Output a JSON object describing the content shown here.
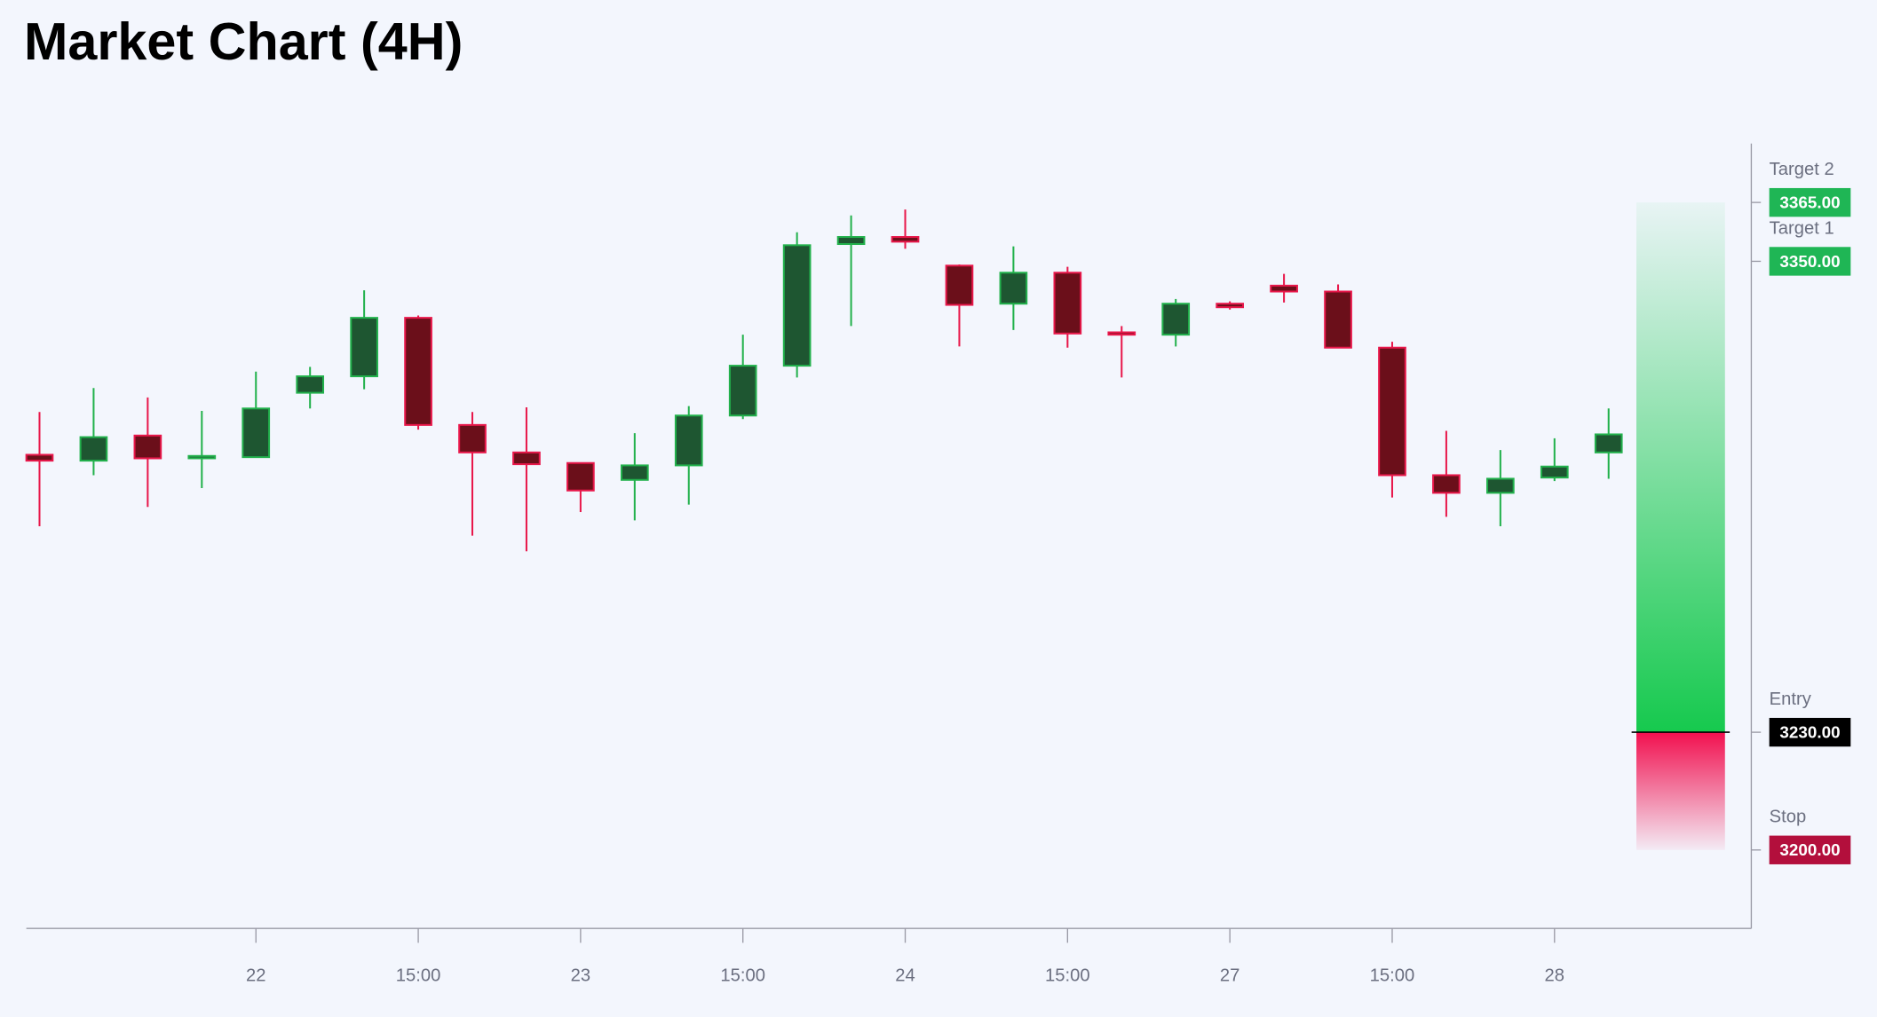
{
  "chart_data": {
    "type": "candlestick",
    "title": "Market Chart (4H)",
    "categories": [
      null,
      null,
      null,
      null,
      "22",
      null,
      null,
      "15:00",
      null,
      null,
      "23",
      null,
      null,
      "15:00",
      null,
      null,
      "24",
      null,
      null,
      "15:00",
      null,
      null,
      "27",
      null,
      null,
      "15:00",
      null,
      null,
      "28",
      null
    ],
    "open": [
      3300.7,
      3299.2,
      3305.6,
      3299.8,
      3300.1,
      3316.5,
      3320.7,
      3335.6,
      3308.3,
      3301.3,
      3298.6,
      3294.3,
      3298.0,
      3310.7,
      3323.4,
      3354.4,
      3356.2,
      3348.9,
      3339.2,
      3347.1,
      3331.9,
      3331.3,
      3339.2,
      3343.8,
      3342.3,
      3328.0,
      3295.5,
      3291.0,
      3294.9,
      3301.3
    ],
    "high": [
      3311.6,
      3317.7,
      3315.3,
      3311.9,
      3321.9,
      3323.1,
      3342.6,
      3336.2,
      3311.6,
      3312.8,
      3298.6,
      3306.2,
      3313.1,
      3331.3,
      3357.4,
      3361.7,
      3363.2,
      3349.2,
      3353.8,
      3348.6,
      3333.5,
      3340.4,
      3339.8,
      3346.8,
      3344.1,
      3329.5,
      3306.8,
      3301.9,
      3304.9,
      3312.5
    ],
    "low": [
      3282.5,
      3295.5,
      3287.4,
      3292.2,
      3300.1,
      3312.5,
      3317.4,
      3307.1,
      3280.1,
      3276.1,
      3286.1,
      3284.0,
      3288.0,
      3309.8,
      3320.4,
      3333.5,
      3353.2,
      3328.3,
      3332.5,
      3328.0,
      3320.4,
      3328.3,
      3337.7,
      3339.5,
      3328.0,
      3289.8,
      3284.9,
      3282.5,
      3294.0,
      3294.6
    ],
    "close": [
      3299.2,
      3305.2,
      3299.8,
      3300.4,
      3312.5,
      3320.7,
      3335.6,
      3308.3,
      3301.3,
      3298.3,
      3291.6,
      3298.0,
      3310.7,
      3323.4,
      3354.1,
      3356.2,
      3355.0,
      3338.9,
      3347.1,
      3331.6,
      3331.3,
      3339.2,
      3338.3,
      3342.3,
      3328.0,
      3295.5,
      3291.0,
      3294.6,
      3297.7,
      3305.9
    ],
    "up_color": "#22b14c",
    "up_fill": "#1e5631",
    "down_color": "#e8174a",
    "down_fill": "#6b0f1a",
    "ylim": [
      3180,
      3380
    ],
    "levels": {
      "names": [
        "Target 2",
        "Target 1",
        "Entry",
        "Stop"
      ],
      "values": [
        3365,
        3350,
        3230,
        3200
      ],
      "value_labels": [
        "3365.00",
        "3350.00",
        "3230.00",
        "3200.00"
      ],
      "colors": [
        "#1fb655",
        "#1fb655",
        "#000000",
        "#b30f3c"
      ]
    }
  }
}
